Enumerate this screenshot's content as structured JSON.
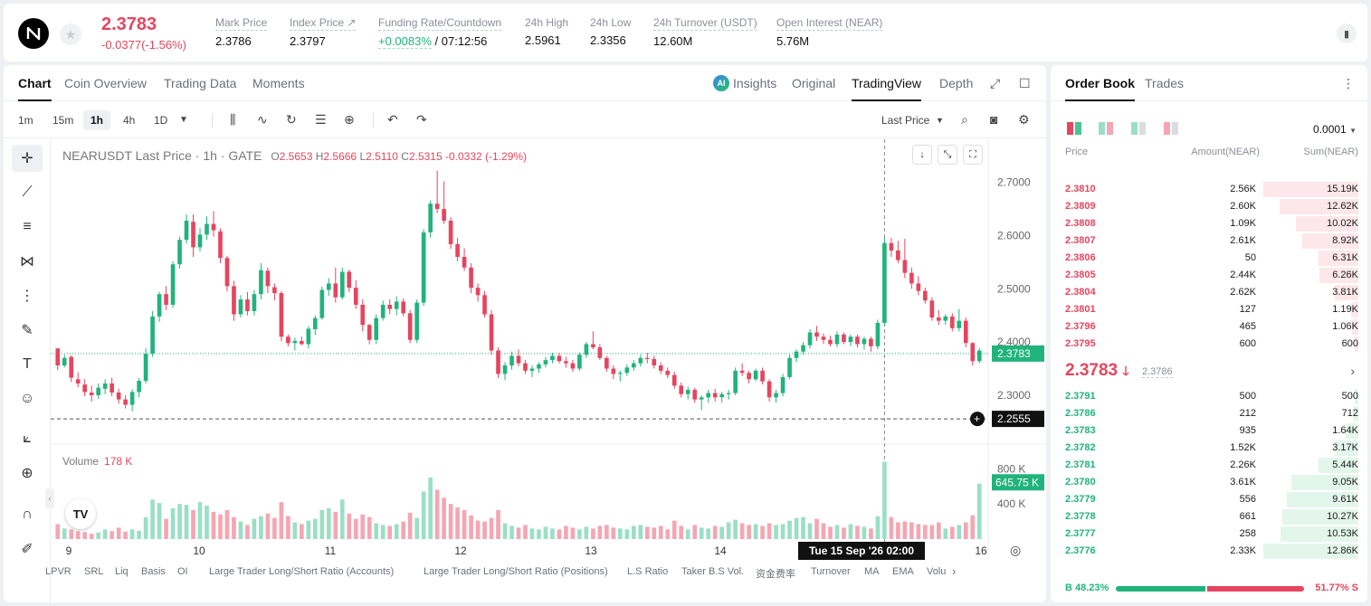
{
  "header": {
    "logo_text": "N",
    "last_price": "2.3783",
    "change": "-0.0377(-1.56%)",
    "stats": [
      {
        "label": "Mark Price",
        "value": "2.3786"
      },
      {
        "label": "Index Price ↗",
        "value": "2.3797"
      },
      {
        "label": "Funding Rate/Countdown",
        "value_green": "+0.0083%",
        "value_rest": " / 07:12:56"
      },
      {
        "label": "24h High",
        "value": "2.5961"
      },
      {
        "label": "24h Low",
        "value": "2.3356"
      },
      {
        "label": "24h Turnover (USDT)",
        "value": "12.60M"
      },
      {
        "label": "Open Interest (NEAR)",
        "value": "5.76M"
      }
    ]
  },
  "chart_tabs": [
    "Chart",
    "Coin Overview",
    "Trading Data",
    "Moments"
  ],
  "view_tabs": {
    "insights": "Insights",
    "original": "Original",
    "tradingview": "TradingView",
    "depth": "Depth"
  },
  "timeframes": [
    "1m",
    "15m",
    "1h",
    "4h",
    "1D"
  ],
  "active_timeframe": "1h",
  "price_type": "Last Price",
  "legend": {
    "symbol": "NEARUSDT Last Price · 1h · GATE",
    "o_label": "O",
    "o": "2.5653",
    "h_label": "H",
    "h": "2.5666",
    "l_label": "L",
    "l": "2.5110",
    "c_label": "C",
    "c": "2.5315",
    "chg": "-0.0332 (-1.29%)"
  },
  "volume_legend": {
    "label": "Volume",
    "value": "178 K"
  },
  "time_chip": "Tue 15 Sep '26   02:00",
  "indicators": [
    "LPVR",
    "SRL",
    "Liq",
    "Basis",
    "OI",
    "Large Trader Long/Short Ratio (Accounts)",
    "Large Trader Long/Short Ratio (Positions)",
    "L.S Ratio",
    "Taker B.S Vol.",
    "资金费率",
    "Turnover",
    "MA",
    "EMA",
    "Volu"
  ],
  "chart_data": {
    "type": "candlestick",
    "price_axis": {
      "ticks": [
        "2.7000",
        "2.6000",
        "2.5000",
        "2.4000",
        "2.3000"
      ],
      "ylim": [
        2.22,
        2.73
      ]
    },
    "volume_axis": {
      "ticks": [
        "800 K",
        "400 K"
      ],
      "ylim": [
        0,
        1050
      ]
    },
    "time_ticks": [
      "9",
      "10",
      "11",
      "12",
      "13",
      "14",
      "16"
    ],
    "last_price_label": "2.3783",
    "last_price": 2.3783,
    "crosshair_price_label": "2.2555",
    "crosshair_price": 2.2555,
    "crosshair_volume_label": "645.75 K",
    "candles_ohlc": [
      [
        2.388,
        2.388,
        2.347,
        2.356
      ],
      [
        2.356,
        2.376,
        2.352,
        2.37
      ],
      [
        2.372,
        2.375,
        2.325,
        2.333
      ],
      [
        2.33,
        2.343,
        2.315,
        2.322
      ],
      [
        2.32,
        2.33,
        2.298,
        2.306
      ],
      [
        2.305,
        2.318,
        2.288,
        2.3
      ],
      [
        2.3,
        2.322,
        2.293,
        2.314
      ],
      [
        2.312,
        2.33,
        2.302,
        2.322
      ],
      [
        2.322,
        2.333,
        2.298,
        2.305
      ],
      [
        2.305,
        2.312,
        2.284,
        2.292
      ],
      [
        2.292,
        2.3,
        2.275,
        2.282
      ],
      [
        2.282,
        2.311,
        2.27,
        2.306
      ],
      [
        2.306,
        2.332,
        2.296,
        2.327
      ],
      [
        2.327,
        2.388,
        2.322,
        2.378
      ],
      [
        2.378,
        2.458,
        2.372,
        2.448
      ],
      [
        2.448,
        2.494,
        2.438,
        2.49
      ],
      [
        2.49,
        2.505,
        2.46,
        2.47
      ],
      [
        2.47,
        2.552,
        2.464,
        2.546
      ],
      [
        2.546,
        2.598,
        2.538,
        2.592
      ],
      [
        2.592,
        2.64,
        2.585,
        2.628
      ],
      [
        2.626,
        2.64,
        2.56,
        2.578
      ],
      [
        2.578,
        2.614,
        2.57,
        2.602
      ],
      [
        2.602,
        2.636,
        2.592,
        2.622
      ],
      [
        2.622,
        2.646,
        2.598,
        2.61
      ],
      [
        2.608,
        2.614,
        2.548,
        2.558
      ],
      [
        2.558,
        2.562,
        2.495,
        2.505
      ],
      [
        2.505,
        2.515,
        2.44,
        2.452
      ],
      [
        2.452,
        2.488,
        2.446,
        2.48
      ],
      [
        2.48,
        2.494,
        2.45,
        2.458
      ],
      [
        2.458,
        2.498,
        2.45,
        2.49
      ],
      [
        2.49,
        2.548,
        2.48,
        2.535
      ],
      [
        2.534,
        2.54,
        2.492,
        2.505
      ],
      [
        2.503,
        2.51,
        2.478,
        2.492
      ],
      [
        2.492,
        2.496,
        2.402,
        2.41
      ],
      [
        2.41,
        2.414,
        2.392,
        2.398
      ],
      [
        2.398,
        2.408,
        2.384,
        2.402
      ],
      [
        2.402,
        2.41,
        2.394,
        2.396
      ],
      [
        2.396,
        2.43,
        2.388,
        2.425
      ],
      [
        2.424,
        2.45,
        2.413,
        2.445
      ],
      [
        2.445,
        2.504,
        2.442,
        2.498
      ],
      [
        2.498,
        2.52,
        2.487,
        2.51
      ],
      [
        2.51,
        2.54,
        2.474,
        2.484
      ],
      [
        2.484,
        2.54,
        2.48,
        2.532
      ],
      [
        2.532,
        2.536,
        2.494,
        2.502
      ],
      [
        2.502,
        2.516,
        2.462,
        2.47
      ],
      [
        2.47,
        2.48,
        2.42,
        2.432
      ],
      [
        2.432,
        2.434,
        2.396,
        2.404
      ],
      [
        2.404,
        2.452,
        2.396,
        2.445
      ],
      [
        2.445,
        2.478,
        2.44,
        2.47
      ],
      [
        2.47,
        2.48,
        2.452,
        2.462
      ],
      [
        2.462,
        2.486,
        2.45,
        2.476
      ],
      [
        2.476,
        2.482,
        2.448,
        2.454
      ],
      [
        2.454,
        2.46,
        2.398,
        2.404
      ],
      [
        2.404,
        2.48,
        2.398,
        2.474
      ],
      [
        2.474,
        2.612,
        2.468,
        2.606
      ],
      [
        2.606,
        2.666,
        2.596,
        2.66
      ],
      [
        2.66,
        2.722,
        2.642,
        2.65
      ],
      [
        2.65,
        2.702,
        2.622,
        2.628
      ],
      [
        2.628,
        2.634,
        2.575,
        2.584
      ],
      [
        2.584,
        2.596,
        2.552,
        2.56
      ],
      [
        2.56,
        2.576,
        2.534,
        2.54
      ],
      [
        2.54,
        2.548,
        2.492,
        2.502
      ],
      [
        2.502,
        2.51,
        2.476,
        2.488
      ],
      [
        2.488,
        2.496,
        2.446,
        2.452
      ],
      [
        2.452,
        2.46,
        2.376,
        2.384
      ],
      [
        2.384,
        2.39,
        2.332,
        2.34
      ],
      [
        2.34,
        2.362,
        2.328,
        2.356
      ],
      [
        2.356,
        2.382,
        2.348,
        2.374
      ],
      [
        2.374,
        2.386,
        2.354,
        2.36
      ],
      [
        2.36,
        2.366,
        2.34,
        2.346
      ],
      [
        2.346,
        2.356,
        2.334,
        2.35
      ],
      [
        2.35,
        2.362,
        2.342,
        2.358
      ],
      [
        2.358,
        2.372,
        2.352,
        2.366
      ],
      [
        2.366,
        2.38,
        2.36,
        2.374
      ],
      [
        2.374,
        2.38,
        2.36,
        2.364
      ],
      [
        2.364,
        2.372,
        2.352,
        2.36
      ],
      [
        2.36,
        2.366,
        2.344,
        2.35
      ],
      [
        2.35,
        2.38,
        2.346,
        2.376
      ],
      [
        2.376,
        2.4,
        2.37,
        2.396
      ],
      [
        2.396,
        2.42,
        2.386,
        2.39
      ],
      [
        2.39,
        2.396,
        2.366,
        2.37
      ],
      [
        2.37,
        2.374,
        2.344,
        2.35
      ],
      [
        2.35,
        2.356,
        2.33,
        2.34
      ],
      [
        2.34,
        2.346,
        2.326,
        2.342
      ],
      [
        2.342,
        2.358,
        2.336,
        2.352
      ],
      [
        2.352,
        2.366,
        2.346,
        2.36
      ],
      [
        2.36,
        2.376,
        2.354,
        2.37
      ],
      [
        2.37,
        2.38,
        2.36,
        2.368
      ],
      [
        2.368,
        2.374,
        2.35,
        2.356
      ],
      [
        2.356,
        2.362,
        2.34,
        2.346
      ],
      [
        2.346,
        2.352,
        2.332,
        2.338
      ],
      [
        2.338,
        2.344,
        2.312,
        2.318
      ],
      [
        2.318,
        2.324,
        2.296,
        2.302
      ],
      [
        2.302,
        2.316,
        2.292,
        2.31
      ],
      [
        2.31,
        2.314,
        2.286,
        2.292
      ],
      [
        2.292,
        2.3,
        2.272,
        2.296
      ],
      [
        2.296,
        2.31,
        2.286,
        2.304
      ],
      [
        2.304,
        2.312,
        2.288,
        2.296
      ],
      [
        2.296,
        2.306,
        2.286,
        2.302
      ],
      [
        2.302,
        2.31,
        2.292,
        2.304
      ],
      [
        2.304,
        2.352,
        2.3,
        2.346
      ],
      [
        2.346,
        2.36,
        2.336,
        2.342
      ],
      [
        2.342,
        2.346,
        2.322,
        2.33
      ],
      [
        2.33,
        2.35,
        2.326,
        2.346
      ],
      [
        2.346,
        2.352,
        2.32,
        2.326
      ],
      [
        2.326,
        2.33,
        2.288,
        2.296
      ],
      [
        2.296,
        2.31,
        2.286,
        2.304
      ],
      [
        2.304,
        2.34,
        2.298,
        2.334
      ],
      [
        2.334,
        2.376,
        2.33,
        2.37
      ],
      [
        2.37,
        2.386,
        2.362,
        2.382
      ],
      [
        2.382,
        2.4,
        2.376,
        2.394
      ],
      [
        2.394,
        2.424,
        2.388,
        2.418
      ],
      [
        2.418,
        2.43,
        2.402,
        2.41
      ],
      [
        2.41,
        2.416,
        2.396,
        2.404
      ],
      [
        2.404,
        2.412,
        2.392,
        2.396
      ],
      [
        2.396,
        2.42,
        2.39,
        2.414
      ],
      [
        2.414,
        2.418,
        2.396,
        2.4
      ],
      [
        2.4,
        2.414,
        2.392,
        2.41
      ],
      [
        2.41,
        2.414,
        2.39,
        2.396
      ],
      [
        2.396,
        2.41,
        2.386,
        2.406
      ],
      [
        2.406,
        2.41,
        2.382,
        2.392
      ],
      [
        2.392,
        2.442,
        2.386,
        2.436
      ],
      [
        2.436,
        2.596,
        2.43,
        2.586
      ],
      [
        2.586,
        2.596,
        2.56,
        2.572
      ],
      [
        2.572,
        2.59,
        2.548,
        2.554
      ],
      [
        2.554,
        2.594,
        2.52,
        2.53
      ],
      [
        2.53,
        2.54,
        2.5,
        2.51
      ],
      [
        2.51,
        2.524,
        2.488,
        2.496
      ],
      [
        2.496,
        2.502,
        2.472,
        2.478
      ],
      [
        2.478,
        2.484,
        2.44,
        2.446
      ],
      [
        2.446,
        2.46,
        2.432,
        2.44
      ],
      [
        2.44,
        2.452,
        2.432,
        2.448
      ],
      [
        2.448,
        2.454,
        2.42,
        2.426
      ],
      [
        2.426,
        2.462,
        2.42,
        2.44
      ],
      [
        2.44,
        2.446,
        2.39,
        2.398
      ],
      [
        2.398,
        2.4,
        2.356,
        2.364
      ],
      [
        2.364,
        2.388,
        2.36,
        2.384
      ]
    ],
    "volumes": [
      170,
      120,
      110,
      90,
      80,
      60,
      75,
      110,
      90,
      130,
      85,
      110,
      95,
      250,
      450,
      410,
      230,
      350,
      400,
      390,
      330,
      420,
      380,
      310,
      280,
      330,
      250,
      200,
      160,
      230,
      260,
      290,
      240,
      420,
      260,
      190,
      170,
      210,
      230,
      330,
      350,
      310,
      450,
      290,
      230,
      280,
      250,
      180,
      160,
      150,
      170,
      200,
      300,
      240,
      540,
      700,
      560,
      470,
      400,
      360,
      330,
      270,
      210,
      200,
      240,
      330,
      180,
      150,
      130,
      160,
      120,
      110,
      140,
      120,
      110,
      150,
      130,
      110,
      140,
      120,
      150,
      160,
      130,
      120,
      110,
      150,
      160,
      140,
      130,
      150,
      110,
      210,
      150,
      110,
      160,
      130,
      120,
      150,
      140,
      190,
      220,
      180,
      160,
      170,
      150,
      180,
      160,
      170,
      210,
      240,
      250,
      180,
      230,
      180,
      140,
      160,
      130,
      170,
      150,
      140,
      120,
      260,
      880,
      250,
      190,
      200,
      190,
      170,
      160,
      160,
      190,
      120,
      140,
      160,
      190,
      270,
      630
    ]
  },
  "orderbook": {
    "tabs": [
      "Order Book",
      "Trades"
    ],
    "precision": "0.0001",
    "columns": {
      "price": "Price",
      "amount": "Amount(NEAR)",
      "sum": "Sum(NEAR)"
    },
    "asks": [
      {
        "price": "2.3810",
        "amount": "2.56K",
        "sum": "15.19K",
        "depth": 1.0
      },
      {
        "price": "2.3809",
        "amount": "2.60K",
        "sum": "12.62K",
        "depth": 0.83
      },
      {
        "price": "2.3808",
        "amount": "1.09K",
        "sum": "10.02K",
        "depth": 0.66
      },
      {
        "price": "2.3807",
        "amount": "2.61K",
        "sum": "8.92K",
        "depth": 0.59
      },
      {
        "price": "2.3806",
        "amount": "50",
        "sum": "6.31K",
        "depth": 0.42
      },
      {
        "price": "2.3805",
        "amount": "2.44K",
        "sum": "6.26K",
        "depth": 0.41
      },
      {
        "price": "2.3804",
        "amount": "2.62K",
        "sum": "3.81K",
        "depth": 0.25
      },
      {
        "price": "2.3801",
        "amount": "127",
        "sum": "1.19K",
        "depth": 0.08
      },
      {
        "price": "2.3796",
        "amount": "465",
        "sum": "1.06K",
        "depth": 0.07
      },
      {
        "price": "2.3795",
        "amount": "600",
        "sum": "600",
        "depth": 0.04
      }
    ],
    "mid_price": "2.3783",
    "mid_arrow": "🡓",
    "mid_mark": "2.3786",
    "bids": [
      {
        "price": "2.3791",
        "amount": "500",
        "sum": "500",
        "depth": 0.04
      },
      {
        "price": "2.3786",
        "amount": "212",
        "sum": "712",
        "depth": 0.06
      },
      {
        "price": "2.3783",
        "amount": "935",
        "sum": "1.64K",
        "depth": 0.13
      },
      {
        "price": "2.3782",
        "amount": "1.52K",
        "sum": "3.17K",
        "depth": 0.25
      },
      {
        "price": "2.3781",
        "amount": "2.26K",
        "sum": "5.44K",
        "depth": 0.42
      },
      {
        "price": "2.3780",
        "amount": "3.61K",
        "sum": "9.05K",
        "depth": 0.7
      },
      {
        "price": "2.3779",
        "amount": "556",
        "sum": "9.61K",
        "depth": 0.75
      },
      {
        "price": "2.3778",
        "amount": "661",
        "sum": "10.27K",
        "depth": 0.8
      },
      {
        "price": "2.3777",
        "amount": "258",
        "sum": "10.53K",
        "depth": 0.82
      },
      {
        "price": "2.3776",
        "amount": "2.33K",
        "sum": "12.86K",
        "depth": 1.0
      }
    ],
    "buy_ratio": "B 48.23%",
    "sell_ratio": "51.77% S",
    "buy_fraction": 0.4823
  },
  "colors": {
    "up": "#21b37c",
    "down": "#e5455f",
    "up_vol": "#9adfc5",
    "down_vol": "#f4a6b2"
  }
}
